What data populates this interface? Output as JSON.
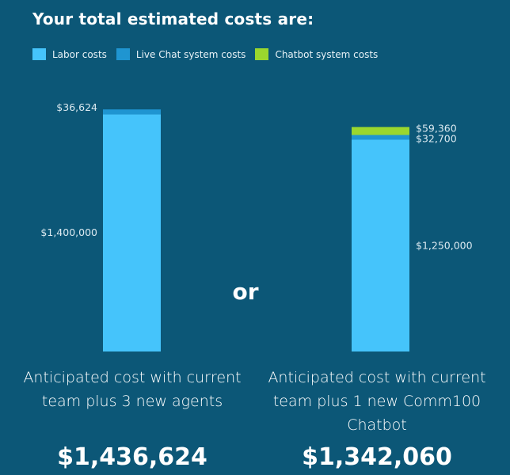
{
  "title": "Your total estimated costs are:",
  "legend": [
    {
      "label": "Labor costs",
      "color": "#45c4fb"
    },
    {
      "label": "Live Chat system costs",
      "color": "#1f95d1"
    },
    {
      "label": "Chatbot system costs",
      "color": "#9ad72e"
    }
  ],
  "separator": "or",
  "scenarios": [
    {
      "caption": "Anticipated cost with current team plus 3 new agents",
      "total": "$1,436,624"
    },
    {
      "caption": "Anticipated cost with current team plus 1 new Comm100 Chatbot",
      "total": "$1,342,060"
    }
  ],
  "chart_data": {
    "type": "bar",
    "stacked": true,
    "categories": [
      "Anticipated cost with current team plus 3 new agents",
      "Anticipated cost with current team plus 1 new Comm100 Chatbot"
    ],
    "series": [
      {
        "name": "Labor costs",
        "values": [
          1400000,
          1250000
        ],
        "labels": [
          "$1,400,000",
          "$1,250,000"
        ],
        "color": "#45c4fb"
      },
      {
        "name": "Live Chat system costs",
        "values": [
          36624,
          32700
        ],
        "labels": [
          "$36,624",
          "$32,700"
        ],
        "color": "#1f95d1"
      },
      {
        "name": "Chatbot system costs",
        "values": [
          0,
          59360
        ],
        "labels": [
          "",
          "$59,360"
        ],
        "color": "#9ad72e"
      }
    ],
    "ylim": [
      0,
      1436624
    ],
    "grid": false,
    "legend_position": "top-left"
  }
}
